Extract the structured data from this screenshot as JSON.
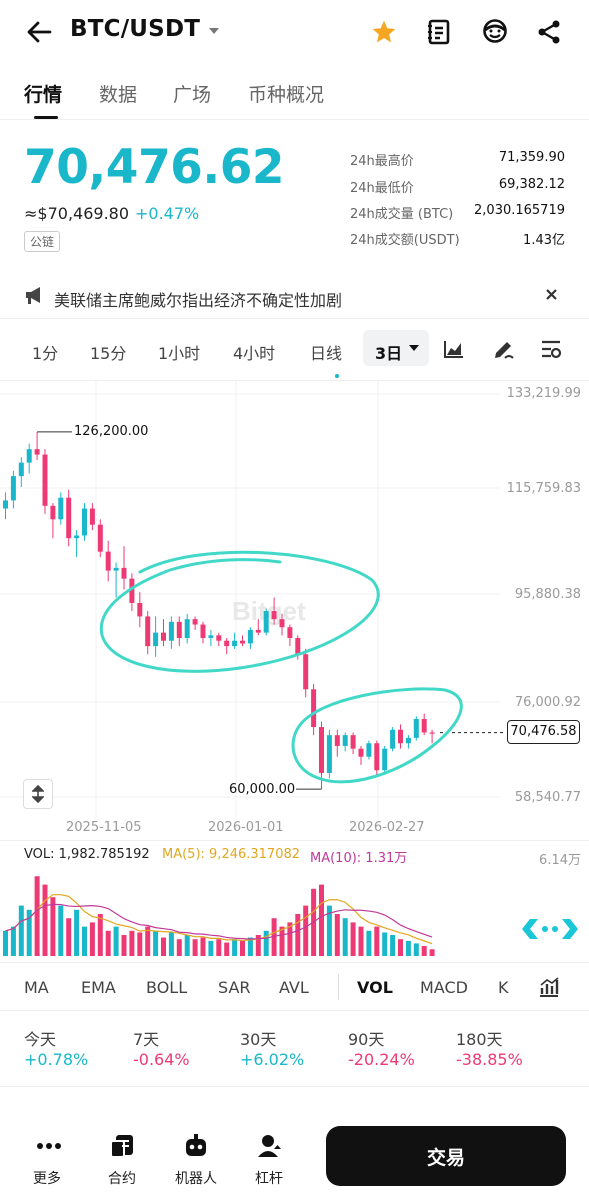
{
  "header": {
    "pair": "BTC/USDT"
  },
  "tabs": [
    "行情",
    "数据",
    "广场",
    "币种概况"
  ],
  "ticker": {
    "last_price": "70,476.62",
    "fiat_price": "≈$70,469.80",
    "change_pct": "+0.47%",
    "chain_tag": "公链",
    "high_label": "24h最高价",
    "high_value": "71,359.90",
    "low_label": "24h最低价",
    "low_value": "69,382.12",
    "vol_btc_label": "24h成交量 (BTC)",
    "vol_btc_value": "2,030.165719",
    "vol_usdt_label": "24h成交额(USDT)",
    "vol_usdt_value": "1.43亿"
  },
  "news": {
    "text": "美联储主席鲍威尔指出经济不确定性加剧"
  },
  "intervals": [
    "1分",
    "15分",
    "1小时",
    "4小时",
    "日线",
    "3日"
  ],
  "chart": {
    "y_ticks": [
      "133,219.99",
      "115,759.83",
      "95,880.38",
      "76,000.92",
      "58,540.77"
    ],
    "x_ticks": [
      "2025-11-05",
      "2026-01-01",
      "2026-02-27"
    ],
    "high_marker": "126,200.00",
    "low_marker": "60,000.00",
    "current_price": "70,476.58",
    "watermark": "Bitget",
    "colors": {
      "up": "#19b7c9",
      "down": "#ee3a74",
      "annotation": "#42d8c8"
    }
  },
  "chart_data": {
    "type": "candlestick",
    "ylim": [
      58540.77,
      133219.99
    ],
    "candles": [
      [
        112000,
        115000,
        110000,
        113500
      ],
      [
        113500,
        119000,
        112000,
        118000
      ],
      [
        118000,
        121500,
        116000,
        120500
      ],
      [
        120500,
        124000,
        118500,
        123000
      ],
      [
        123000,
        126200,
        121000,
        122000
      ],
      [
        122000,
        123000,
        111000,
        112500
      ],
      [
        112500,
        113000,
        106500,
        110000
      ],
      [
        110000,
        115000,
        109000,
        114000
      ],
      [
        114000,
        115500,
        105000,
        106500
      ],
      [
        106500,
        108000,
        103000,
        107000
      ],
      [
        107000,
        113000,
        106000,
        112000
      ],
      [
        112000,
        113000,
        108000,
        109000
      ],
      [
        109000,
        110000,
        103000,
        104000
      ],
      [
        104000,
        106000,
        98500,
        100500
      ],
      [
        100500,
        102000,
        95500,
        101000
      ],
      [
        101000,
        105000,
        97000,
        99000
      ],
      [
        99000,
        100000,
        93000,
        94500
      ],
      [
        94500,
        96500,
        90000,
        92000
      ],
      [
        92000,
        93000,
        85000,
        86500
      ],
      [
        86500,
        92000,
        84500,
        89000
      ],
      [
        89000,
        91500,
        86500,
        87500
      ],
      [
        87500,
        92000,
        86000,
        91000
      ],
      [
        91000,
        92000,
        86500,
        88000
      ],
      [
        88000,
        92500,
        87000,
        91500
      ],
      [
        91500,
        92000,
        89500,
        90500
      ],
      [
        90500,
        91000,
        87000,
        88000
      ],
      [
        88000,
        89500,
        86500,
        88500
      ],
      [
        88500,
        89000,
        86500,
        87500
      ],
      [
        87500,
        88000,
        85000,
        86500
      ],
      [
        86500,
        89000,
        86000,
        87500
      ],
      [
        87500,
        88500,
        86500,
        87000
      ],
      [
        87000,
        90000,
        86000,
        89500
      ],
      [
        89500,
        91500,
        88500,
        89000
      ],
      [
        89000,
        93500,
        88500,
        93000
      ],
      [
        93000,
        95500,
        90500,
        91500
      ],
      [
        91500,
        92500,
        88500,
        90000
      ],
      [
        90000,
        90500,
        86500,
        88000
      ],
      [
        88000,
        88500,
        84000,
        85000
      ],
      [
        85000,
        86000,
        77000,
        78500
      ],
      [
        78500,
        79500,
        70000,
        71500
      ],
      [
        71500,
        72500,
        60000,
        63000
      ],
      [
        63000,
        71000,
        62000,
        70000
      ],
      [
        70000,
        71000,
        66000,
        68000
      ],
      [
        68000,
        70500,
        67000,
        70000
      ],
      [
        70000,
        70500,
        66500,
        67500
      ],
      [
        67500,
        68000,
        64500,
        66000
      ],
      [
        66000,
        69000,
        65500,
        68500
      ],
      [
        68500,
        69000,
        62500,
        63500
      ],
      [
        63500,
        68000,
        63000,
        67500
      ],
      [
        67500,
        71500,
        67000,
        71000
      ],
      [
        71000,
        72000,
        67500,
        68500
      ],
      [
        68500,
        70000,
        67500,
        69500
      ],
      [
        69500,
        73500,
        69000,
        73000
      ],
      [
        73000,
        74000,
        70000,
        70500
      ],
      [
        70500,
        71000,
        68500,
        70476.58
      ]
    ]
  },
  "volume": {
    "vol_label": "VOL: 1,982.785192",
    "ma5_label": "MA(5): 9,246.317082",
    "ma10_label": "MA(10): 1.31万",
    "max_label": "6.14万"
  },
  "indicators": [
    "MA",
    "EMA",
    "BOLL",
    "SAR",
    "AVL",
    "VOL",
    "MACD",
    "K"
  ],
  "performance": [
    {
      "label": "今天",
      "value": "+0.78%"
    },
    {
      "label": "7天",
      "value": "-0.64%"
    },
    {
      "label": "30天",
      "value": "+6.02%"
    },
    {
      "label": "90天",
      "value": "-20.24%"
    },
    {
      "label": "180天",
      "value": "-38.85%"
    }
  ],
  "bottom_nav": {
    "more": "更多",
    "contract": "合约",
    "bot": "机器人",
    "leverage": "杠杆",
    "trade": "交易"
  }
}
